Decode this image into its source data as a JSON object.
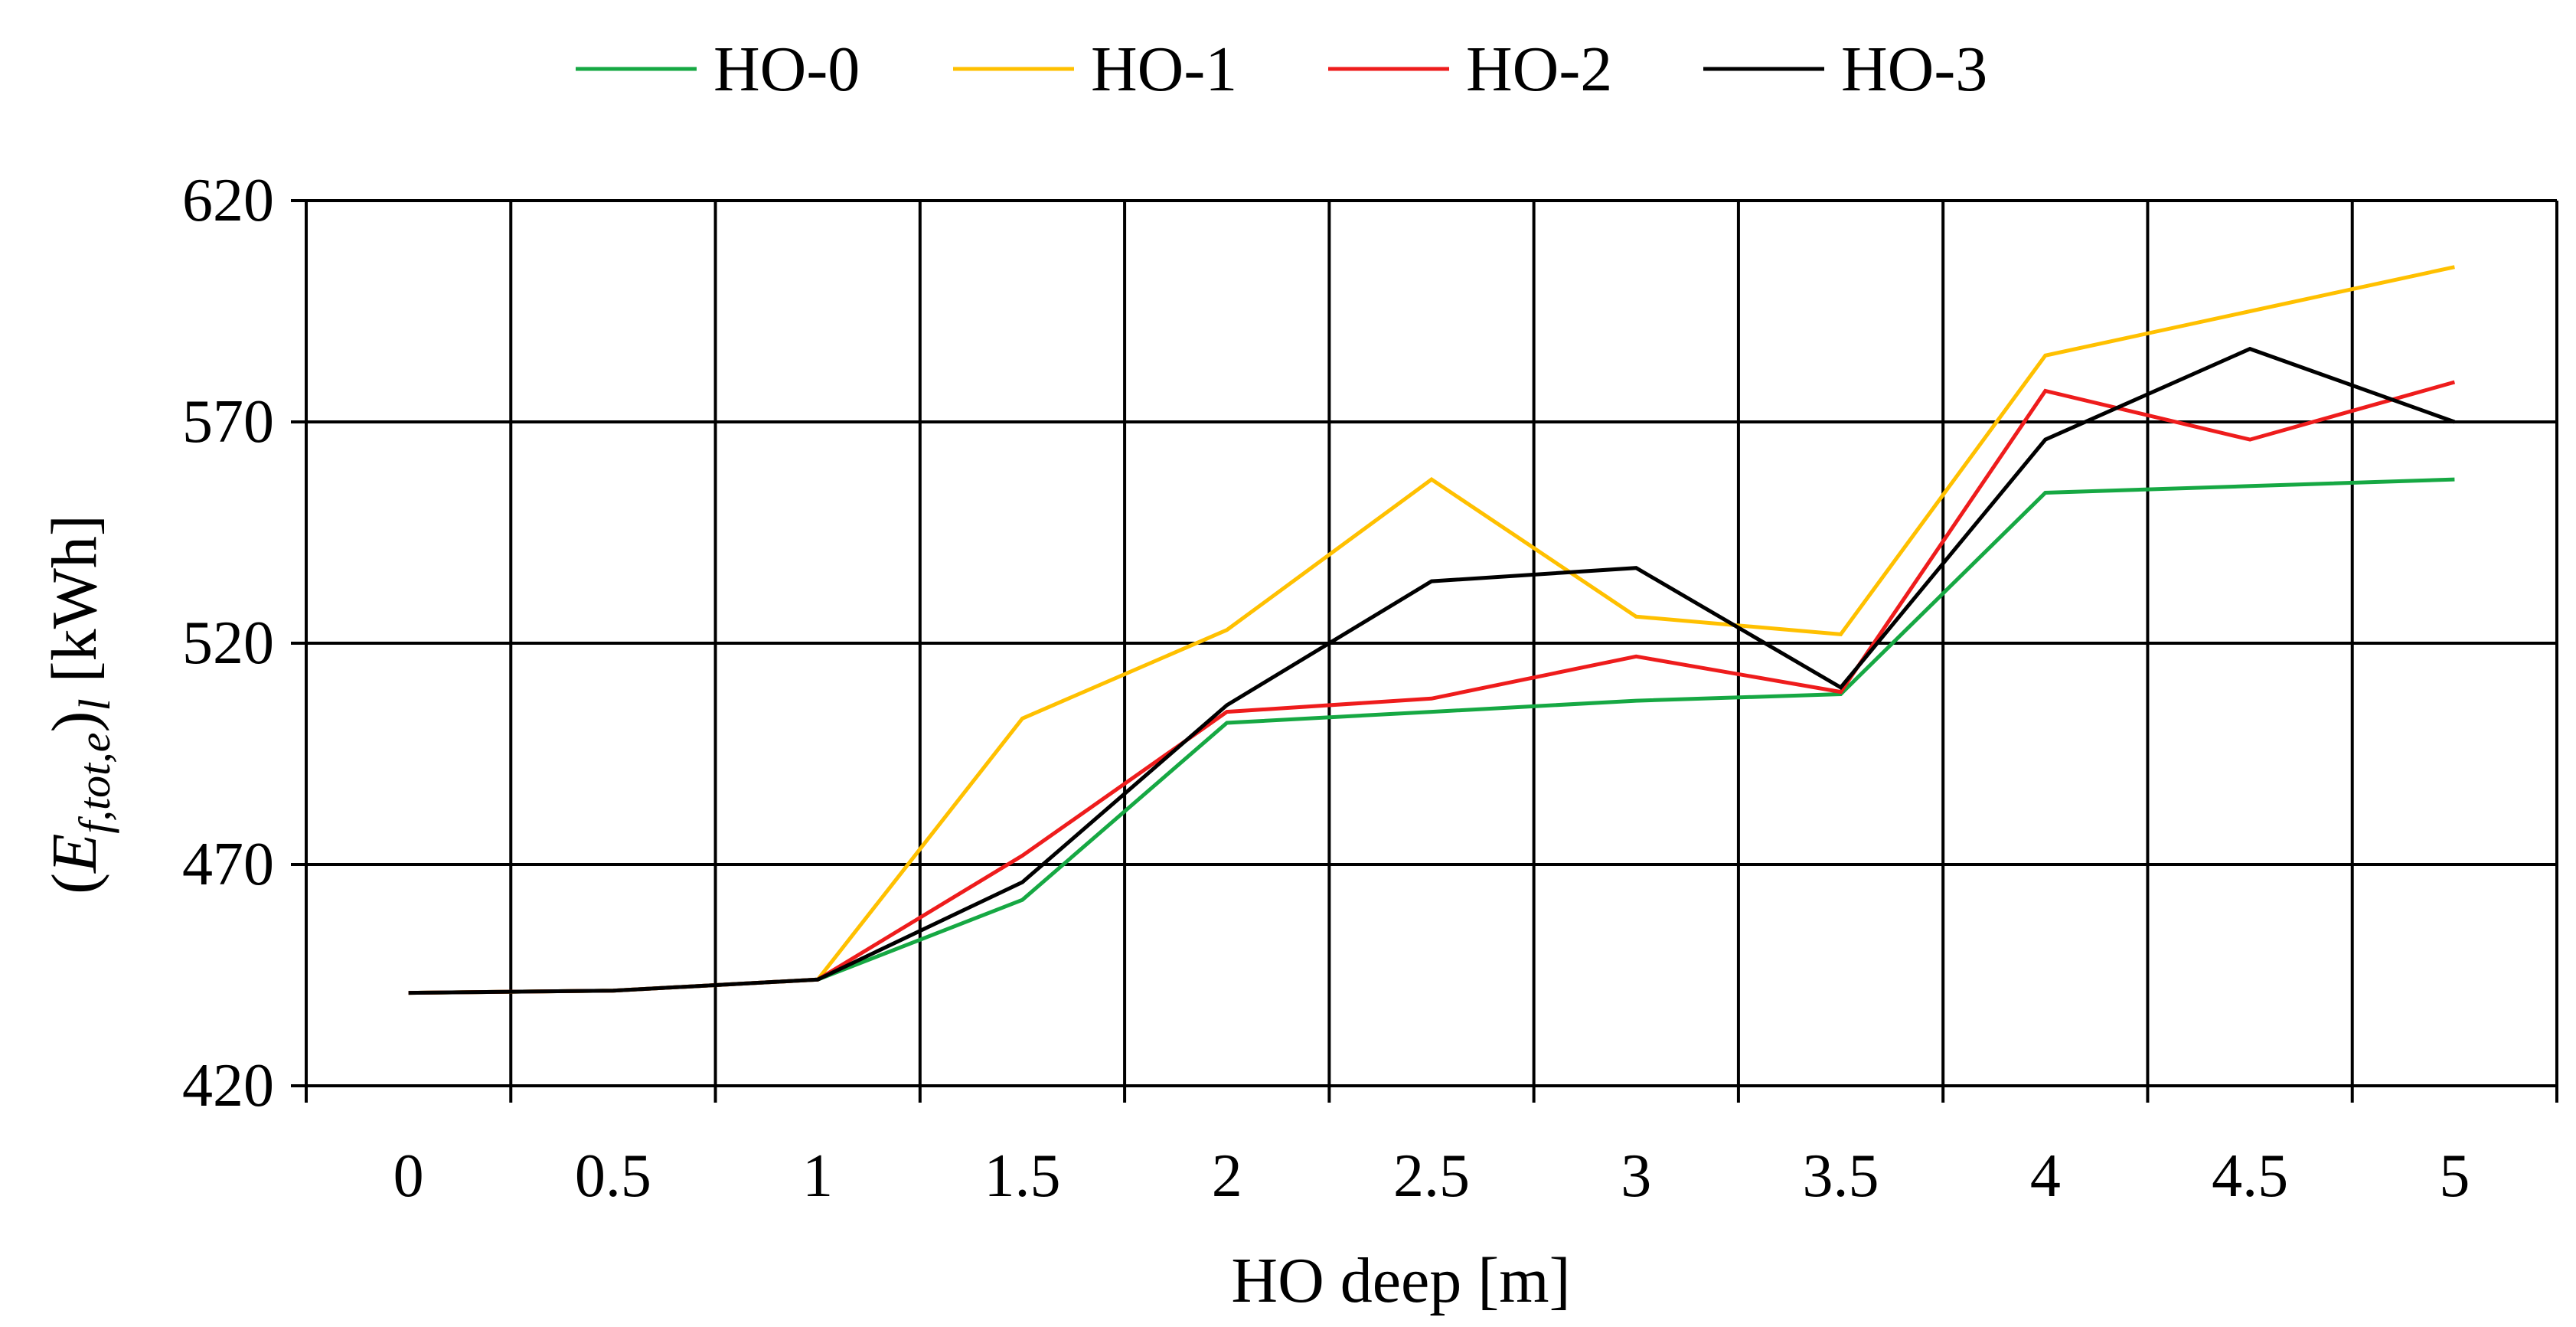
{
  "chart_data": {
    "type": "line",
    "title": "",
    "xlabel": "HO deep [m]",
    "ylabel": {
      "open": "(",
      "main": "E",
      "sub": "f,tot,e",
      "close": ")",
      "sub2": "l",
      "unit": " [kWh]"
    },
    "categories": [
      "0",
      "0.5",
      "1",
      "1.5",
      "2",
      "2.5",
      "3",
      "3.5",
      "4",
      "4.5",
      "5"
    ],
    "x": [
      0,
      0.5,
      1,
      1.5,
      2,
      2.5,
      3,
      3.5,
      4,
      4.5,
      5
    ],
    "ylim": [
      420,
      620
    ],
    "yticks": [
      "420",
      "470",
      "520",
      "570",
      "620"
    ],
    "grid": true,
    "legend_position": "top",
    "series": [
      {
        "name": "HO-0",
        "color": "#16a843",
        "values": [
          441,
          441.5,
          444,
          462,
          502,
          504.5,
          507,
          508.5,
          554,
          555.5,
          557
        ]
      },
      {
        "name": "HO-1",
        "color": "#ffc000",
        "values": [
          441,
          441.5,
          444,
          503,
          523,
          557,
          526,
          522,
          585,
          595,
          605
        ]
      },
      {
        "name": "HO-2",
        "color": "#ee1c1c",
        "values": [
          441,
          441.5,
          444,
          472,
          504.5,
          507.5,
          517,
          509,
          577,
          566,
          579
        ]
      },
      {
        "name": "HO-3",
        "color": "#000000",
        "values": [
          441,
          441.5,
          444,
          466,
          506,
          534,
          537,
          510,
          566,
          586.5,
          570
        ]
      }
    ]
  }
}
